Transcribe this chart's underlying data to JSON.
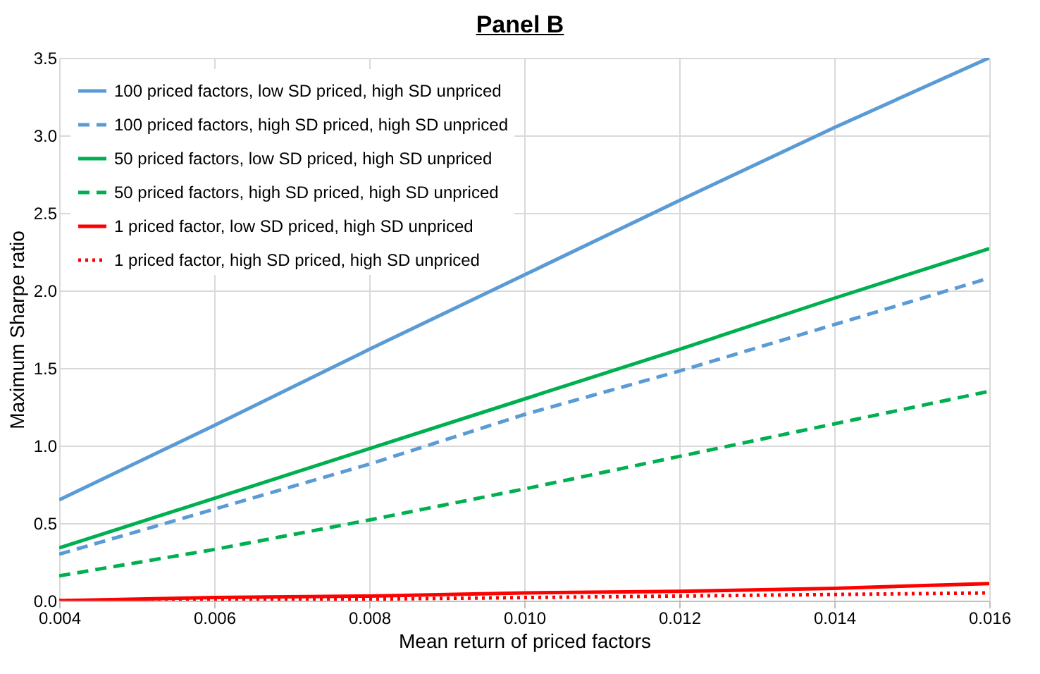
{
  "chart_data": {
    "type": "line",
    "title": "Panel B",
    "xlabel": "Mean return of priced factors",
    "ylabel": "Maximum Sharpe ratio",
    "x": [
      0.004,
      0.006,
      0.008,
      0.01,
      0.012,
      0.014,
      0.016
    ],
    "series": [
      {
        "name": "100 priced factors, low SD priced, high SD unpriced",
        "color": "#5b9bd5",
        "line_style": "solid",
        "values": [
          0.65,
          1.13,
          1.62,
          2.1,
          2.58,
          3.05,
          3.5
        ]
      },
      {
        "name": "100 priced factors, high SD priced, high SD unpriced",
        "color": "#5b9bd5",
        "line_style": "dashed",
        "values": [
          0.3,
          0.59,
          0.88,
          1.2,
          1.48,
          1.78,
          2.08
        ]
      },
      {
        "name": "50 priced factors, low SD priced, high SD unpriced",
        "color": "#00b050",
        "line_style": "solid",
        "values": [
          0.34,
          0.66,
          0.98,
          1.3,
          1.62,
          1.95,
          2.27
        ]
      },
      {
        "name": "50 priced factors, high SD priced, high SD unpriced",
        "color": "#00b050",
        "line_style": "dashed",
        "values": [
          0.16,
          0.33,
          0.52,
          0.72,
          0.93,
          1.14,
          1.35
        ]
      },
      {
        "name": "1 priced factor, low SD priced, high SD unpriced",
        "color": "#ff0000",
        "line_style": "solid",
        "values": [
          0.0,
          0.02,
          0.03,
          0.05,
          0.06,
          0.08,
          0.11
        ]
      },
      {
        "name": "1 priced factor, high SD priced, high SD unpriced",
        "color": "#ff0000",
        "line_style": "dotted",
        "values": [
          0.0,
          0.01,
          0.01,
          0.02,
          0.03,
          0.04,
          0.05
        ]
      }
    ],
    "xlim": [
      0.004,
      0.016
    ],
    "xticks": [
      {
        "value": 0.004,
        "label": "0.004"
      },
      {
        "value": 0.006,
        "label": "0.006"
      },
      {
        "value": 0.008,
        "label": "0.008"
      },
      {
        "value": 0.01,
        "label": "0.010"
      },
      {
        "value": 0.012,
        "label": "0.012"
      },
      {
        "value": 0.014,
        "label": "0.014"
      },
      {
        "value": 0.016,
        "label": "0.016"
      }
    ],
    "ylim": [
      0,
      3.5
    ],
    "yticks": [
      {
        "value": 0,
        "label": "0.0"
      },
      {
        "value": 0.5,
        "label": "0.5"
      },
      {
        "value": 1,
        "label": "1.0"
      },
      {
        "value": 1.5,
        "label": "1.5"
      },
      {
        "value": 2,
        "label": "2.0"
      },
      {
        "value": 2.5,
        "label": "2.5"
      },
      {
        "value": 3,
        "label": "3.0"
      },
      {
        "value": 3.5,
        "label": "3.5"
      }
    ],
    "grid": true,
    "legend": "top left"
  }
}
